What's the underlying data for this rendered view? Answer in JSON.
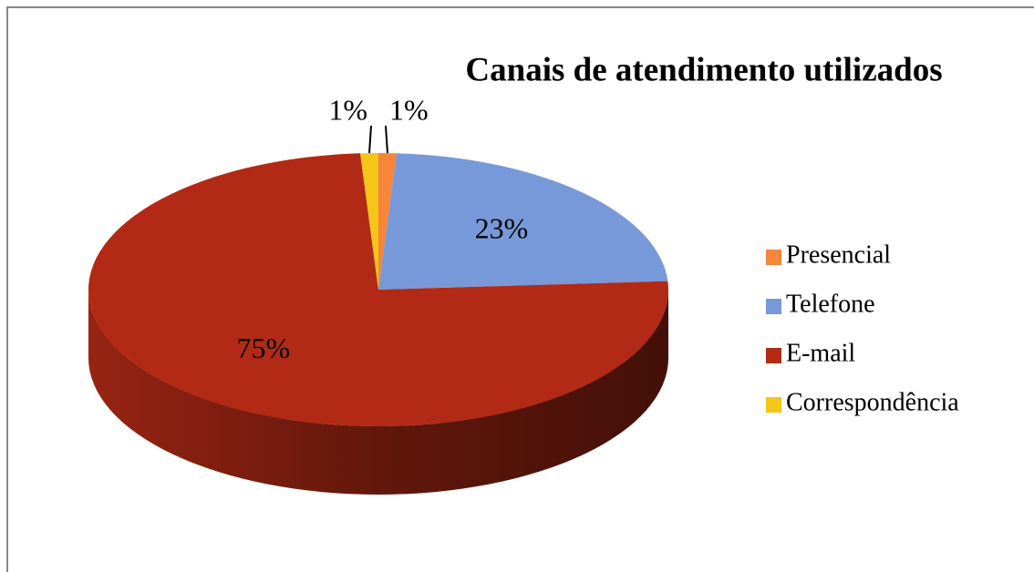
{
  "chart_data": {
    "type": "pie",
    "title": "Canais de atendimento utilizados",
    "categories": [
      "Presencial",
      "Telefone",
      "E-mail",
      "Correspondência"
    ],
    "values": [
      1,
      23,
      75,
      1
    ],
    "value_labels": [
      "1%",
      "23%",
      "75%",
      "1%"
    ],
    "colors": [
      "#f7853a",
      "#7799d9",
      "#b22a15",
      "#f5c518"
    ],
    "legend": "right"
  }
}
